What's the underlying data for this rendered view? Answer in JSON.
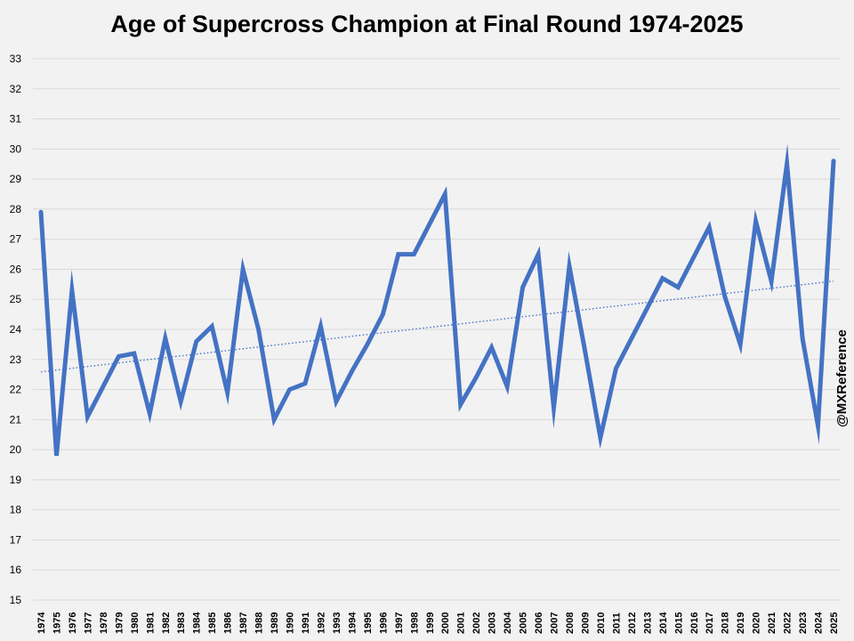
{
  "chart_data": {
    "type": "line",
    "title": "Age of Supercross Champion at Final Round 1974-2025",
    "xlabel": "",
    "ylabel": "",
    "ylim": [
      15,
      33
    ],
    "yticks": [
      15,
      16,
      17,
      18,
      19,
      20,
      21,
      22,
      23,
      24,
      25,
      26,
      27,
      28,
      29,
      30,
      31,
      32,
      33
    ],
    "grid": true,
    "legend": "none",
    "series_color": "#4472c4",
    "trendline": {
      "type": "linear",
      "style": "dotted",
      "color": "#4472c4"
    },
    "x": [
      1974,
      1975,
      1976,
      1977,
      1978,
      1979,
      1980,
      1981,
      1982,
      1983,
      1984,
      1985,
      1986,
      1987,
      1988,
      1989,
      1990,
      1991,
      1992,
      1993,
      1994,
      1995,
      1996,
      1997,
      1998,
      1999,
      2000,
      2001,
      2002,
      2003,
      2004,
      2005,
      2006,
      2007,
      2008,
      2009,
      2010,
      2011,
      2012,
      2013,
      2014,
      2015,
      2016,
      2017,
      2018,
      2019,
      2020,
      2021,
      2022,
      2023,
      2024,
      2025
    ],
    "values": [
      27.9,
      19.8,
      25.3,
      21.1,
      22.1,
      23.1,
      23.2,
      21.2,
      23.7,
      21.6,
      23.6,
      24.1,
      21.9,
      26.0,
      24.0,
      21.0,
      22.0,
      22.2,
      24.1,
      21.6,
      22.6,
      23.5,
      24.5,
      26.5,
      26.5,
      27.5,
      28.5,
      21.5,
      22.4,
      23.4,
      22.1,
      25.4,
      26.5,
      21.4,
      26.1,
      23.3,
      20.4,
      22.7,
      23.7,
      24.7,
      25.7,
      25.4,
      26.4,
      27.4,
      25.1,
      23.5,
      27.6,
      25.6,
      29.5,
      23.7,
      20.8,
      29.6
    ]
  },
  "watermark": "@MXReference"
}
